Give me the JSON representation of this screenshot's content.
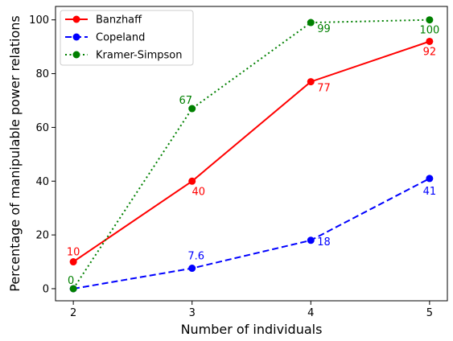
{
  "chart_data": {
    "type": "line",
    "xlabel": "Number of individuals",
    "ylabel": "Percentage of manipulable power relations",
    "x": [
      2,
      3,
      4,
      5
    ],
    "xlim": [
      1.85,
      5.15
    ],
    "ylim": [
      -4.5,
      105
    ],
    "xticks": [
      2,
      3,
      4,
      5
    ],
    "yticks": [
      0,
      20,
      40,
      60,
      80,
      100
    ],
    "grid": false,
    "legend_position": "top-left",
    "series": [
      {
        "name": "Banzhaff",
        "values": [
          10,
          40,
          77,
          92
        ],
        "labels": [
          "10",
          "40",
          "77",
          "92"
        ],
        "color": "#ff0000",
        "line_style": "solid",
        "marker": "circle"
      },
      {
        "name": "Copeland",
        "values": [
          0,
          7.6,
          18,
          41
        ],
        "labels": [
          "",
          "7.6",
          "18",
          "41"
        ],
        "color": "#0000ff",
        "line_style": "dashed",
        "marker": "circle"
      },
      {
        "name": "Kramer-Simpson",
        "values": [
          0,
          67,
          99,
          100
        ],
        "labels": [
          "0",
          "67",
          "99",
          "100"
        ],
        "color": "#008000",
        "line_style": "dotted",
        "marker": "circle"
      }
    ]
  }
}
